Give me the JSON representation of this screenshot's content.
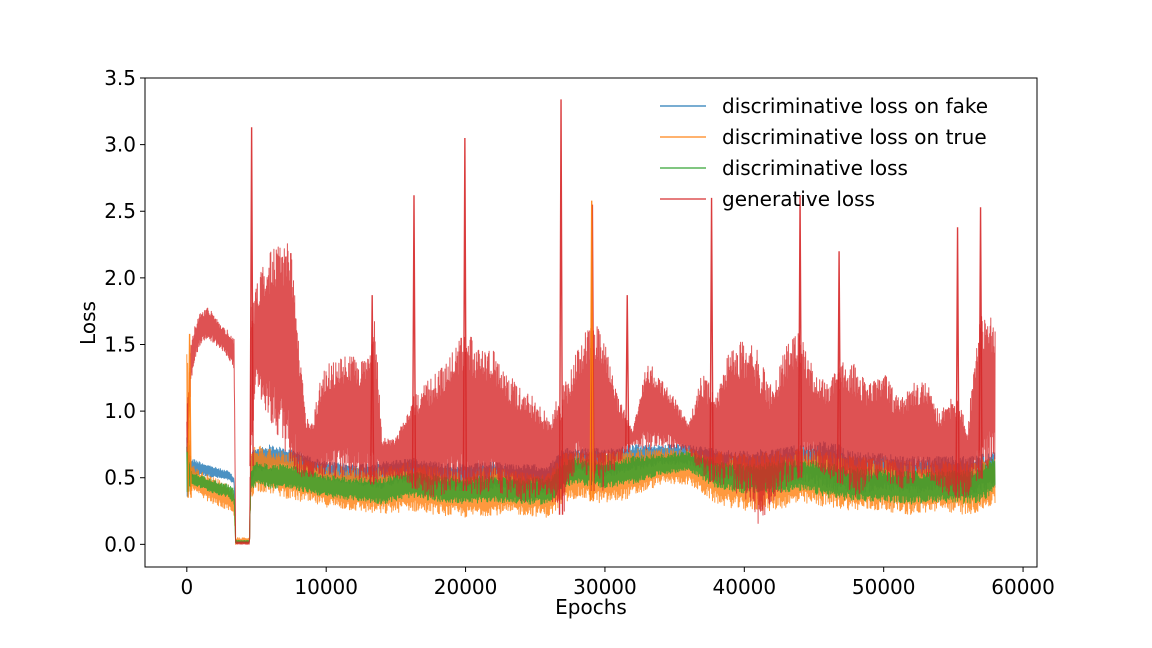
{
  "chart_data": {
    "type": "line",
    "title": "",
    "xlabel": "Epochs",
    "ylabel": "Loss",
    "xlim": [
      -3000,
      61000
    ],
    "ylim": [
      -0.17,
      3.5
    ],
    "xticks": [
      0,
      10000,
      20000,
      30000,
      40000,
      50000,
      60000
    ],
    "xtick_labels": [
      "0",
      "10000",
      "20000",
      "30000",
      "40000",
      "50000",
      "60000"
    ],
    "yticks": [
      0.0,
      0.5,
      1.0,
      1.5,
      2.0,
      2.5,
      3.0,
      3.5
    ],
    "ytick_labels": [
      "0.0",
      "0.5",
      "1.0",
      "1.5",
      "2.0",
      "2.5",
      "3.0",
      "3.5"
    ],
    "grid": false,
    "legend_position": "top-right",
    "series": [
      {
        "name": "discriminative loss on fake",
        "color": "#1f77b4",
        "x": [
          0,
          300,
          1000,
          2000,
          3000,
          3400,
          3500,
          4500,
          4600,
          5000,
          6000,
          7000,
          8000,
          9000,
          10000,
          12000,
          14000,
          16000,
          18000,
          20000,
          22000,
          24000,
          26000,
          27000,
          28000,
          30000,
          32000,
          34000,
          36000,
          38000,
          40000,
          42000,
          44000,
          46000,
          48000,
          50000,
          52000,
          54000,
          56000,
          57000,
          58000
        ],
        "low": [
          0.3,
          0.5,
          0.52,
          0.5,
          0.48,
          0.45,
          0.01,
          0.01,
          0.45,
          0.55,
          0.55,
          0.58,
          0.55,
          0.5,
          0.48,
          0.45,
          0.42,
          0.48,
          0.42,
          0.4,
          0.42,
          0.4,
          0.38,
          0.5,
          0.55,
          0.5,
          0.55,
          0.6,
          0.6,
          0.5,
          0.45,
          0.45,
          0.48,
          0.42,
          0.38,
          0.4,
          0.38,
          0.4,
          0.36,
          0.4,
          0.42
        ],
        "high": [
          0.9,
          0.65,
          0.62,
          0.58,
          0.55,
          0.5,
          0.02,
          0.02,
          0.7,
          0.72,
          0.75,
          0.72,
          0.7,
          0.65,
          0.62,
          0.6,
          0.62,
          0.65,
          0.62,
          0.6,
          0.62,
          0.6,
          0.6,
          0.72,
          0.72,
          0.72,
          0.75,
          0.75,
          0.75,
          0.72,
          0.7,
          0.72,
          0.75,
          0.78,
          0.7,
          0.68,
          0.66,
          0.66,
          0.66,
          0.68,
          0.7
        ]
      },
      {
        "name": "discriminative loss on true",
        "color": "#ff7f0e",
        "x": [
          0,
          300,
          1000,
          2000,
          3000,
          3400,
          3500,
          4500,
          4600,
          5000,
          6000,
          7000,
          8000,
          9000,
          10000,
          12000,
          14000,
          16000,
          18000,
          20000,
          22000,
          24000,
          26000,
          27000,
          28000,
          30000,
          32000,
          34000,
          36000,
          38000,
          40000,
          42000,
          44000,
          46000,
          48000,
          50000,
          52000,
          54000,
          56000,
          57000,
          58000
        ],
        "low": [
          0.25,
          0.4,
          0.35,
          0.3,
          0.25,
          0.2,
          0.0,
          0.0,
          0.35,
          0.4,
          0.38,
          0.35,
          0.32,
          0.3,
          0.28,
          0.25,
          0.22,
          0.25,
          0.22,
          0.2,
          0.22,
          0.22,
          0.2,
          0.3,
          0.35,
          0.3,
          0.35,
          0.45,
          0.45,
          0.3,
          0.25,
          0.25,
          0.3,
          0.28,
          0.25,
          0.25,
          0.22,
          0.25,
          0.22,
          0.25,
          0.3
        ],
        "high": [
          1.55,
          0.6,
          0.55,
          0.5,
          0.45,
          0.4,
          0.05,
          0.05,
          0.7,
          0.75,
          0.72,
          0.7,
          0.68,
          0.62,
          0.6,
          0.58,
          0.58,
          0.62,
          0.58,
          0.55,
          0.58,
          0.55,
          0.55,
          0.68,
          0.7,
          0.7,
          0.72,
          0.72,
          0.72,
          0.7,
          0.68,
          0.7,
          0.72,
          0.7,
          0.66,
          0.64,
          0.62,
          0.62,
          0.62,
          0.64,
          0.66
        ]
      },
      {
        "name": "discriminative loss",
        "color": "#2ca02c",
        "x": [
          0,
          300,
          1000,
          2000,
          3000,
          3400,
          3500,
          4500,
          4600,
          5000,
          6000,
          7000,
          8000,
          9000,
          10000,
          12000,
          14000,
          16000,
          18000,
          20000,
          22000,
          24000,
          26000,
          27000,
          28000,
          30000,
          32000,
          34000,
          36000,
          38000,
          40000,
          42000,
          44000,
          46000,
          48000,
          50000,
          52000,
          54000,
          56000,
          57000,
          58000
        ],
        "low": [
          0.3,
          0.45,
          0.42,
          0.38,
          0.35,
          0.3,
          0.01,
          0.01,
          0.4,
          0.45,
          0.42,
          0.42,
          0.4,
          0.38,
          0.35,
          0.33,
          0.3,
          0.35,
          0.32,
          0.3,
          0.32,
          0.3,
          0.3,
          0.42,
          0.45,
          0.42,
          0.45,
          0.52,
          0.55,
          0.42,
          0.38,
          0.38,
          0.4,
          0.35,
          0.32,
          0.32,
          0.3,
          0.32,
          0.3,
          0.32,
          0.38
        ],
        "high": [
          0.8,
          0.55,
          0.52,
          0.48,
          0.45,
          0.42,
          0.03,
          0.03,
          0.58,
          0.62,
          0.6,
          0.6,
          0.58,
          0.55,
          0.52,
          0.5,
          0.5,
          0.55,
          0.52,
          0.5,
          0.52,
          0.5,
          0.5,
          0.62,
          0.65,
          0.62,
          0.66,
          0.68,
          0.7,
          0.62,
          0.6,
          0.62,
          0.64,
          0.62,
          0.58,
          0.56,
          0.55,
          0.55,
          0.56,
          0.6,
          0.66
        ]
      },
      {
        "name": "generative loss",
        "color": "#d62728",
        "x": [
          0,
          300,
          600,
          1000,
          1500,
          2000,
          2500,
          3000,
          3400,
          3500,
          4500,
          4600,
          5000,
          5500,
          6000,
          6500,
          7000,
          7500,
          8000,
          8500,
          9000,
          9500,
          10000,
          11000,
          12000,
          13000,
          13500,
          14000,
          15000,
          16000,
          17000,
          18000,
          19000,
          20000,
          21000,
          22000,
          23000,
          24000,
          25000,
          26000,
          27000,
          28000,
          29000,
          30000,
          31000,
          32000,
          33000,
          34000,
          35000,
          36000,
          37000,
          38000,
          39000,
          40000,
          41000,
          42000,
          43000,
          44000,
          45000,
          46000,
          47000,
          48000,
          49000,
          50000,
          51000,
          52000,
          53000,
          54000,
          55000,
          56000,
          57000,
          58000
        ],
        "low": [
          0.6,
          1.2,
          1.4,
          1.5,
          1.55,
          1.5,
          1.45,
          1.4,
          1.3,
          0.0,
          0.0,
          0.5,
          1.2,
          1.0,
          0.9,
          0.8,
          0.7,
          0.6,
          0.5,
          0.5,
          0.5,
          0.5,
          0.5,
          0.5,
          0.5,
          0.45,
          0.45,
          0.5,
          0.5,
          0.45,
          0.35,
          0.35,
          0.4,
          0.4,
          0.35,
          0.4,
          0.35,
          0.3,
          0.35,
          0.35,
          0.2,
          0.6,
          0.4,
          0.4,
          0.6,
          0.75,
          0.7,
          0.72,
          0.72,
          0.7,
          0.5,
          0.45,
          0.4,
          0.3,
          0.15,
          0.3,
          0.4,
          0.5,
          0.6,
          0.5,
          0.45,
          0.35,
          0.45,
          0.5,
          0.4,
          0.45,
          0.5,
          0.4,
          0.35,
          0.35,
          0.5,
          0.6
        ],
        "high": [
          1.0,
          1.5,
          1.65,
          1.75,
          1.78,
          1.72,
          1.65,
          1.6,
          1.55,
          0.02,
          0.02,
          1.8,
          1.95,
          2.1,
          2.2,
          2.28,
          2.3,
          2.2,
          1.6,
          1.0,
          0.9,
          1.2,
          1.35,
          1.4,
          1.42,
          1.4,
          1.7,
          0.8,
          0.8,
          1.1,
          1.2,
          1.3,
          1.5,
          1.6,
          1.5,
          1.45,
          1.3,
          1.2,
          1.1,
          0.95,
          1.2,
          1.45,
          1.7,
          1.55,
          1.1,
          0.85,
          1.4,
          1.25,
          1.1,
          0.9,
          1.3,
          1.1,
          1.5,
          1.55,
          1.45,
          1.2,
          1.5,
          1.6,
          1.3,
          1.2,
          1.4,
          1.35,
          1.2,
          1.3,
          1.1,
          1.2,
          1.25,
          1.0,
          1.15,
          0.9,
          1.75,
          1.7
        ]
      }
    ],
    "spikes": [
      {
        "series": "generative loss",
        "x": 4650,
        "y": 3.13
      },
      {
        "series": "generative loss",
        "x": 16300,
        "y": 2.62
      },
      {
        "series": "generative loss",
        "x": 19950,
        "y": 3.05
      },
      {
        "series": "generative loss",
        "x": 26850,
        "y": 3.34
      },
      {
        "series": "generative loss",
        "x": 29100,
        "y": 2.55
      },
      {
        "series": "generative loss",
        "x": 37650,
        "y": 2.6
      },
      {
        "series": "generative loss",
        "x": 44000,
        "y": 2.62
      },
      {
        "series": "generative loss",
        "x": 46800,
        "y": 2.2
      },
      {
        "series": "generative loss",
        "x": 55300,
        "y": 2.38
      },
      {
        "series": "generative loss",
        "x": 56950,
        "y": 2.53
      },
      {
        "series": "generative loss",
        "x": 13300,
        "y": 1.87
      },
      {
        "series": "generative loss",
        "x": 31600,
        "y": 1.87
      },
      {
        "series": "discriminative loss on true",
        "x": 29050,
        "y": 2.58
      },
      {
        "series": "discriminative loss on true",
        "x": 200,
        "y": 1.58
      }
    ]
  }
}
